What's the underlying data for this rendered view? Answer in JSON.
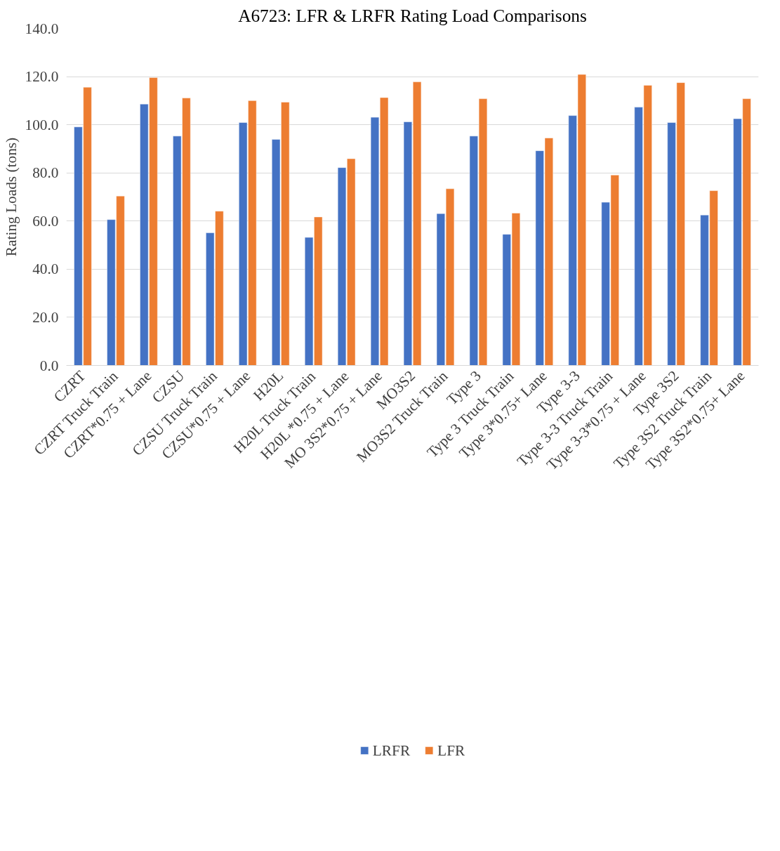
{
  "chart_data": {
    "type": "bar",
    "title": "A6723: LFR & LRFR Rating Load Comparisons",
    "ylabel": "Rating Loads (tons)",
    "categories": [
      "CZRT",
      "CZRT Truck Train",
      "CZRT*0.75 + Lane",
      "CZSU",
      "CZSU Truck Train",
      "CZSU*0.75 + Lane",
      "H20L",
      "H20L Truck Train",
      "H20L *0.75 + Lane",
      "MO 3S2*0.75 + Lane",
      "MO3S2",
      "MO3S2 Truck Train",
      "Type 3",
      "Type 3 Truck Train",
      "Type 3*0.75+ Lane",
      "Type 3-3",
      "Type 3-3 Truck Train",
      "Type 3-3*0.75 + Lane",
      "Type 3S2",
      "Type 3S2 Truck Train",
      "Type 3S2*0.75+ Lane"
    ],
    "series": [
      {
        "name": "LRFR",
        "color": "#4472c4",
        "values": [
          99.1,
          60.6,
          108.6,
          95.3,
          55.1,
          100.9,
          93.9,
          53.2,
          82.2,
          103.1,
          101.2,
          63.1,
          95.3,
          54.5,
          89.2,
          103.8,
          67.8,
          107.3,
          100.9,
          62.5,
          102.5
        ]
      },
      {
        "name": "LFR",
        "color": "#ed7d31",
        "values": [
          115.6,
          70.4,
          119.6,
          111.1,
          64.1,
          110.0,
          109.4,
          61.7,
          85.9,
          111.3,
          117.8,
          73.4,
          110.8,
          63.3,
          94.5,
          120.9,
          79.1,
          116.4,
          117.5,
          72.6,
          110.8
        ]
      }
    ],
    "ylim": [
      0,
      140
    ],
    "yticks": [
      {
        "value": 0,
        "label": "0.0"
      },
      {
        "value": 20,
        "label": "20.0"
      },
      {
        "value": 40,
        "label": "40.0"
      },
      {
        "value": 60,
        "label": "60.0"
      },
      {
        "value": 80,
        "label": "80.0"
      },
      {
        "value": 100,
        "label": "100.0"
      },
      {
        "value": 120,
        "label": "120.0"
      },
      {
        "value": 140,
        "label": "140.0"
      }
    ],
    "grid": "y",
    "legend": "bottom"
  }
}
